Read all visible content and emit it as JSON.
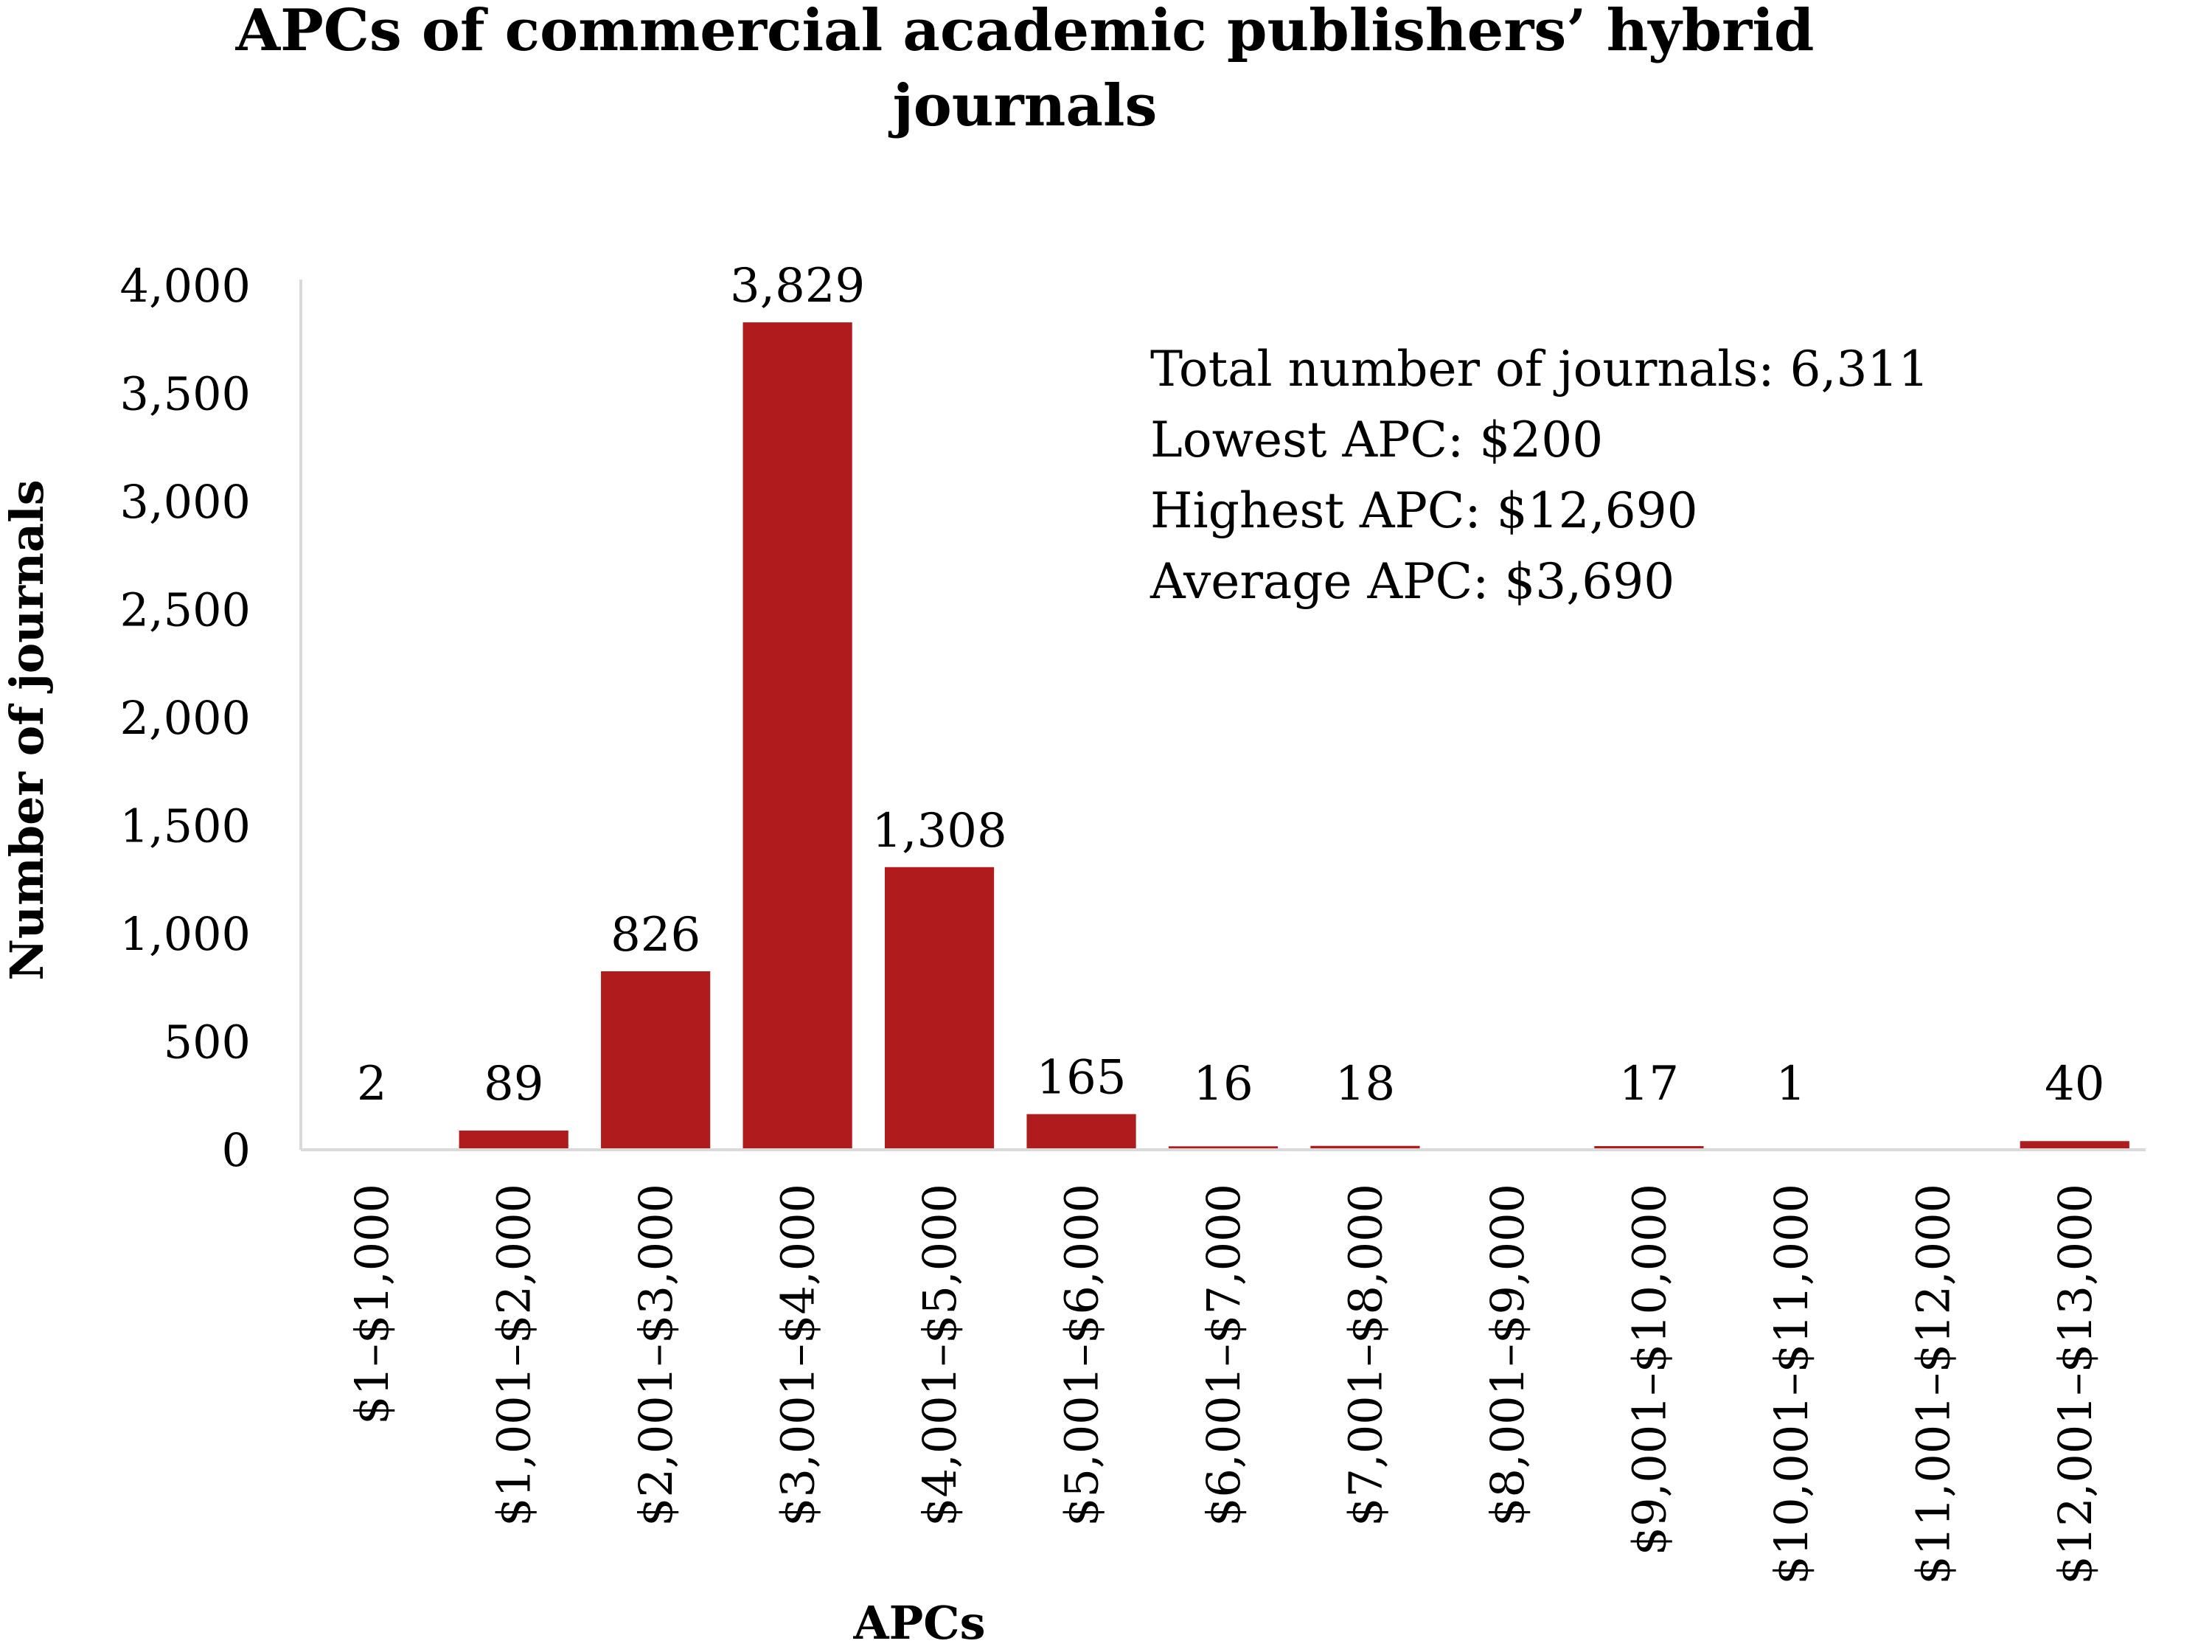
{
  "chart_data": {
    "type": "bar",
    "title": "APCs of commercial academic publishers’ hybrid journals",
    "title_lines": [
      "APCs of commercial academic publishers’ hybrid",
      "journals"
    ],
    "xlabel": "APCs",
    "ylabel": "Number of journals",
    "ylim": [
      0,
      4000
    ],
    "yticks": [
      0,
      500,
      1000,
      1500,
      2000,
      2500,
      3000,
      3500,
      4000
    ],
    "ytick_labels": [
      "0",
      "500",
      "1,000",
      "1,500",
      "2,000",
      "2,500",
      "3,000",
      "3,500",
      "4,000"
    ],
    "grid": false,
    "legend": "none",
    "categories": [
      "$1–$1,000",
      "$1,001–$2,000",
      "$2,001–$3,000",
      "$3,001–$4,000",
      "$4,001–$5,000",
      "$5,001–$6,000",
      "$6,001–$7,000",
      "$7,001–$8,000",
      "$8,001–$9,000",
      "$9,001–$10,000",
      "$10,001–$11,000",
      "$11,001–$12,000",
      "$12,001–$13,000"
    ],
    "values": [
      2,
      89,
      826,
      3829,
      1308,
      165,
      16,
      18,
      0,
      17,
      1,
      0,
      40
    ],
    "data_labels": [
      "2",
      "89",
      "826",
      "3,829",
      "1,308",
      "165",
      "16",
      "18",
      "",
      "17",
      "1",
      "",
      "40"
    ],
    "annotations": [
      "Total number of journals: 6,311",
      "Lowest APC: $200",
      "Highest APC: $12,690",
      "Average APC: $3,690"
    ],
    "colors": {
      "bar": "#B01C1E",
      "axis": "#D9D9D9",
      "text": "#000000"
    }
  }
}
